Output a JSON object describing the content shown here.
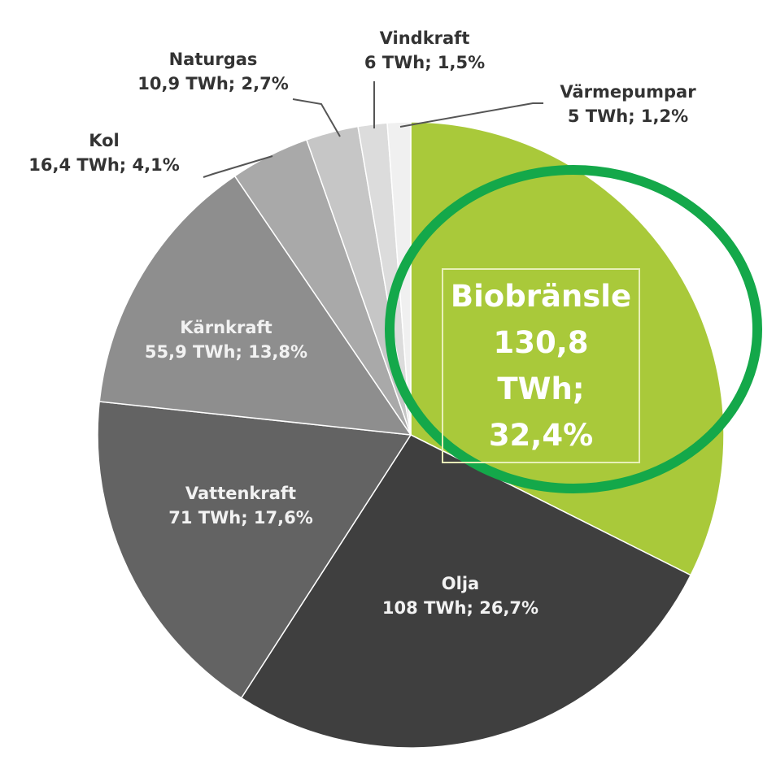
{
  "chart_data": {
    "type": "pie",
    "categories": [
      "Biobränsle",
      "Olja",
      "Vattenkraft",
      "Kärnkraft",
      "Kol",
      "Naturgas",
      "Vindkraft",
      "Värmepumpar"
    ],
    "values": [
      32.4,
      26.7,
      17.6,
      13.8,
      4.1,
      2.7,
      1.5,
      1.2
    ],
    "value_labels": [
      "130,8 TWh; 32,4%",
      "108 TWh; 26,7%",
      "71 TWh; 17,6%",
      "55,9 TWh; 13,8%",
      "16,4 TWh; 4,1%",
      "10,9 TWh; 2,7%",
      "6 TWh; 1,5%",
      "5 TWh; 1,2%"
    ],
    "colors": [
      "#a9c93a",
      "#3f3f3f",
      "#636363",
      "#8e8e8e",
      "#a9a9a9",
      "#c6c6c6",
      "#dcdcdc",
      "#f0f0f0"
    ]
  }
}
